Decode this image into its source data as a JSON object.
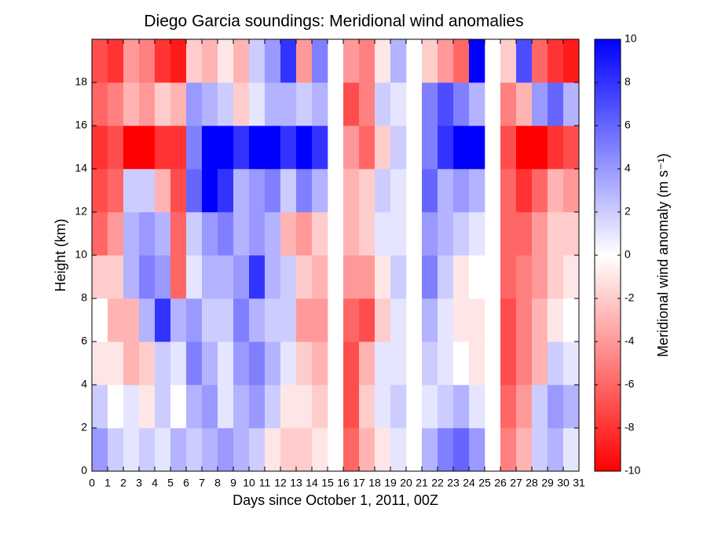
{
  "chart_data": {
    "type": "heatmap",
    "title": "Diego Garcia soundings:  Meridional wind anomalies",
    "x_label": "Days since October 1, 2011, 00Z",
    "y_label": "Height (km)",
    "colorbar_label": "Meridional wind anomaly (m s⁻¹)",
    "xbins": [
      0,
      1,
      2,
      3,
      4,
      5,
      6,
      7,
      8,
      9,
      10,
      11,
      12,
      13,
      14,
      15,
      16,
      17,
      18,
      19,
      20,
      21,
      22,
      23,
      24,
      25,
      26,
      27,
      28,
      29,
      30,
      31
    ],
    "ybins": [
      0,
      2,
      4,
      6,
      8,
      10,
      12,
      14,
      16,
      18,
      20
    ],
    "xlim": [
      0,
      31
    ],
    "ylim": [
      0,
      20
    ],
    "zlim": [
      -10,
      10
    ],
    "xticks": [
      0,
      1,
      2,
      3,
      4,
      5,
      6,
      7,
      8,
      9,
      10,
      11,
      12,
      13,
      14,
      15,
      16,
      17,
      18,
      19,
      20,
      21,
      22,
      23,
      24,
      25,
      26,
      27,
      28,
      29,
      30,
      31
    ],
    "yticks": [
      0,
      2,
      4,
      6,
      8,
      10,
      12,
      14,
      16,
      18
    ],
    "zticks": [
      -10,
      -8,
      -6,
      -4,
      -2,
      0,
      2,
      4,
      6,
      8,
      10
    ],
    "colors": [
      "#ff0000",
      "#ffffff",
      "#0000ff"
    ],
    "z": [
      [
        4,
        2,
        1,
        2,
        1,
        3,
        2,
        3,
        4,
        3,
        2,
        -1,
        -2,
        -2,
        -1,
        null,
        -6,
        -3,
        -1,
        1,
        null,
        3,
        5,
        6,
        4,
        null,
        -5,
        -3,
        2,
        3,
        1
      ],
      [
        2,
        0,
        1,
        -1,
        2,
        0,
        3,
        4,
        1,
        3,
        4,
        2,
        -1,
        -1,
        -2,
        null,
        -7,
        -2,
        1,
        2,
        null,
        1,
        2,
        3,
        1,
        null,
        -6,
        -4,
        2,
        4,
        3
      ],
      [
        -1,
        -1,
        -3,
        -2,
        2,
        1,
        5,
        3,
        1,
        4,
        5,
        3,
        1,
        -2,
        -3,
        null,
        -7,
        -3,
        1,
        1,
        null,
        2,
        1,
        0,
        -1,
        null,
        -7,
        -5,
        -3,
        2,
        1
      ],
      [
        0,
        -3,
        -3,
        3,
        8,
        3,
        4,
        2,
        2,
        5,
        3,
        2,
        2,
        -4,
        -4,
        null,
        -6,
        -7,
        -2,
        1,
        null,
        3,
        1,
        -1,
        -1,
        null,
        -7,
        -5,
        -3,
        -1,
        0
      ],
      [
        -2,
        -2,
        3,
        5,
        4,
        -6,
        1,
        3,
        3,
        4,
        8,
        3,
        2,
        -2,
        -3,
        null,
        -4,
        -4,
        -1,
        2,
        null,
        5,
        2,
        -1,
        0,
        null,
        -6,
        -5,
        -4,
        -2,
        -1
      ],
      [
        -6,
        -4,
        3,
        4,
        3,
        -6,
        2,
        4,
        5,
        3,
        4,
        3,
        -3,
        -4,
        -2,
        null,
        -3,
        -2,
        1,
        1,
        null,
        4,
        3,
        2,
        1,
        null,
        -6,
        -6,
        -4,
        -2,
        -2
      ],
      [
        -7,
        -6,
        2,
        2,
        -3,
        -7,
        6,
        10,
        8,
        3,
        4,
        5,
        2,
        5,
        3,
        null,
        -3,
        -2,
        2,
        1,
        null,
        6,
        3,
        4,
        3,
        null,
        -6,
        -8,
        -6,
        -3,
        -4
      ],
      [
        -8,
        -7,
        -10,
        -10,
        -8,
        -8,
        5,
        10,
        10,
        8,
        10,
        10,
        8,
        10,
        8,
        null,
        -4,
        -6,
        -2,
        2,
        null,
        5,
        8,
        10,
        10,
        null,
        -7,
        -10,
        -10,
        -8,
        -7
      ],
      [
        -6,
        -5,
        -3,
        -4,
        -2,
        -3,
        4,
        3,
        2,
        -2,
        1,
        3,
        3,
        2,
        3,
        null,
        -7,
        -5,
        2,
        1,
        null,
        5,
        7,
        5,
        3,
        null,
        -5,
        -3,
        4,
        6,
        3
      ],
      [
        -7,
        -8,
        -4,
        -5,
        -8,
        -9,
        -2,
        -3,
        -1,
        -3,
        2,
        4,
        8,
        -4,
        5,
        null,
        -4,
        -5,
        -1,
        3,
        null,
        -2,
        -4,
        -6,
        10,
        null,
        -2,
        7,
        -6,
        -8,
        -9
      ]
    ]
  }
}
